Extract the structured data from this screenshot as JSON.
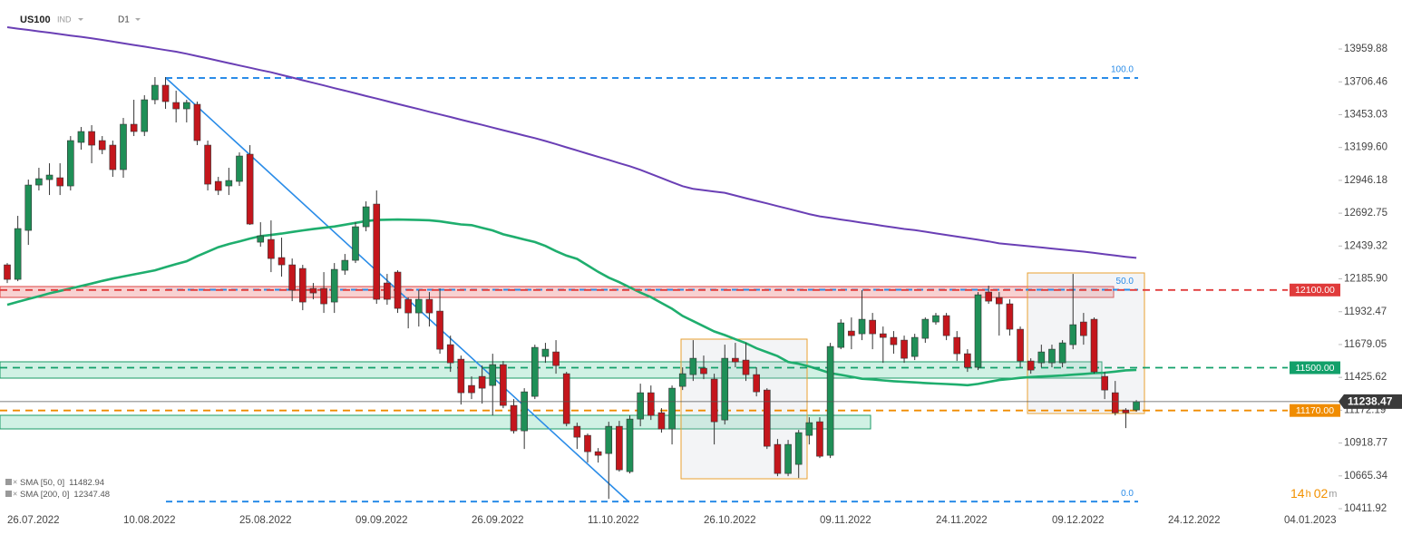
{
  "chart_data": {
    "type": "candlestick",
    "symbol": "US100",
    "instrument_type": "IND",
    "timeframe": "D1",
    "categories": [
      "26.07.2022",
      null,
      null,
      null,
      null,
      null,
      null,
      null,
      null,
      null,
      null,
      "10.08.2022",
      null,
      null,
      null,
      null,
      null,
      null,
      null,
      null,
      null,
      null,
      "25.08.2022",
      null,
      null,
      null,
      null,
      null,
      null,
      null,
      null,
      null,
      null,
      "09.09.2022",
      null,
      null,
      null,
      null,
      null,
      null,
      null,
      null,
      null,
      null,
      "26.09.2022",
      null,
      null,
      null,
      null,
      null,
      null,
      null,
      null,
      null,
      null,
      "11.10.2022",
      null,
      null,
      null,
      null,
      null,
      null,
      null,
      null,
      null,
      null,
      "26.10.2022",
      null,
      null,
      null,
      null,
      null,
      null,
      null,
      null,
      null,
      null,
      "09.11.2022",
      null,
      null,
      null,
      null,
      null,
      null,
      null,
      null,
      null,
      null,
      "24.11.2022",
      null,
      null,
      null,
      null,
      null,
      null,
      null,
      null,
      null,
      null,
      "09.12.2022",
      null,
      null,
      null,
      null,
      null,
      null,
      null,
      null,
      null,
      null,
      "24.12.2022",
      null,
      null,
      null,
      null,
      null,
      null,
      null,
      null,
      null,
      null,
      "04.01.2023",
      null,
      null,
      null,
      null,
      null
    ],
    "open": [
      12294,
      12182,
      12560,
      12910,
      12952,
      12966,
      12903,
      13239,
      13323,
      13253,
      13218,
      13029,
      13379,
      13323,
      13568,
      13680,
      13547,
      13498,
      13533,
      13218,
      12938,
      12903,
      12938,
      13148,
      12469,
      12490,
      12350,
      12294,
      12266,
      12112,
      12112,
      12007,
      12252,
      12329,
      12588,
      12763,
      12154,
      12238,
      12028,
      11923,
      12028,
      11937,
      11678,
      11566,
      11363,
      11433,
      11363,
      11524,
      11209,
      11013,
      11279,
      11587,
      11622,
      11454,
      11048,
      10978,
      10852,
      10838,
      11048,
      10698,
      11104,
      11307,
      11153,
      11027,
      11356,
      11447,
      11496,
      11412,
      11097,
      11573,
      11559,
      11447,
      11328,
      10908,
      10684,
      10754,
      10978,
      11083,
      10824,
      11657,
      11783,
      11762,
      11867,
      11762,
      11734,
      11713,
      11587,
      11727,
      11853,
      11902,
      11734,
      11608,
      11503,
      12084,
      12042,
      11993,
      11797,
      11552,
      11538,
      11538,
      11538,
      11678,
      11853,
      11874,
      11433,
      11307,
      11174,
      11174,
      null,
      null,
      null,
      null,
      null,
      null,
      null,
      null,
      null,
      null,
      null,
      null,
      null,
      null,
      null,
      null,
      null,
      null,
      null
    ],
    "high": [
      12308,
      12672,
      12952,
      13043,
      13078,
      13078,
      13288,
      13358,
      13372,
      13288,
      13253,
      13428,
      13568,
      13603,
      13743,
      13743,
      13638,
      13568,
      13554,
      13253,
      12973,
      13043,
      13162,
      13218,
      12623,
      12637,
      12504,
      12343,
      12294,
      12154,
      12238,
      12308,
      12378,
      12623,
      12784,
      12868,
      12224,
      12252,
      12042,
      12098,
      12084,
      12112,
      11748,
      11594,
      11433,
      11517,
      11608,
      11552,
      11258,
      11342,
      11678,
      11692,
      11713,
      11468,
      11076,
      10992,
      10880,
      11083,
      11090,
      11132,
      11377,
      11363,
      11188,
      11363,
      11503,
      11713,
      11594,
      11454,
      11678,
      11692,
      11692,
      11503,
      11342,
      10950,
      10943,
      11020,
      11118,
      11118,
      11692,
      11874,
      11888,
      12098,
      11923,
      11818,
      11783,
      11748,
      11762,
      11888,
      11923,
      11923,
      11783,
      11643,
      12084,
      12133,
      12084,
      12028,
      11818,
      11573,
      11678,
      11678,
      11713,
      12224,
      11923,
      11888,
      11468,
      11398,
      11188,
      11250,
      null,
      null,
      null,
      null,
      null,
      null,
      null,
      null,
      null,
      null,
      null,
      null,
      null,
      null,
      null,
      null,
      null,
      null,
      null
    ],
    "low": [
      12154,
      12168,
      12448,
      12868,
      12833,
      12833,
      12868,
      13183,
      13078,
      13148,
      12973,
      12966,
      13288,
      13288,
      13533,
      13498,
      13393,
      13393,
      13218,
      12868,
      12833,
      12833,
      12903,
      12602,
      12434,
      12238,
      12203,
      12014,
      11944,
      12028,
      11923,
      11923,
      12217,
      12308,
      12553,
      11993,
      11986,
      11923,
      11804,
      11818,
      11818,
      11608,
      11468,
      11216,
      11258,
      11223,
      11132,
      11188,
      10992,
      10873,
      11258,
      11538,
      11454,
      11048,
      10873,
      10768,
      10768,
      10488,
      10698,
      10684,
      11048,
      11097,
      10999,
      10908,
      11328,
      11398,
      11412,
      10908,
      11062,
      11503,
      11398,
      11279,
      10873,
      10663,
      10663,
      10649,
      10908,
      10803,
      10803,
      11643,
      11643,
      11713,
      11643,
      11538,
      11608,
      11538,
      11559,
      11692,
      11832,
      11713,
      11552,
      11468,
      11482,
      11993,
      11748,
      11748,
      11503,
      11454,
      11503,
      11503,
      11503,
      11643,
      11678,
      11454,
      11258,
      11132,
      11034,
      11160,
      null,
      null,
      null,
      null,
      null,
      null,
      null,
      null,
      null,
      null,
      null,
      null,
      null,
      null,
      null,
      null,
      null,
      null,
      null
    ],
    "close": [
      12182,
      12574,
      12910,
      12959,
      12987,
      12903,
      13253,
      13323,
      13218,
      13183,
      13029,
      13379,
      13323,
      13568,
      13680,
      13554,
      13498,
      13547,
      13253,
      12917,
      12868,
      12945,
      13134,
      12609,
      12518,
      12343,
      12294,
      12098,
      12007,
      12077,
      11993,
      12259,
      12329,
      12588,
      12742,
      12028,
      12028,
      11958,
      11923,
      12028,
      11923,
      11643,
      11538,
      11307,
      11307,
      11342,
      11524,
      11209,
      11013,
      11314,
      11657,
      11643,
      11517,
      11069,
      10964,
      10852,
      10824,
      11048,
      10712,
      11104,
      11307,
      11132,
      11027,
      11342,
      11454,
      11573,
      11454,
      11083,
      11573,
      11545,
      11447,
      11314,
      10894,
      10684,
      10908,
      10999,
      11076,
      10817,
      11664,
      11846,
      11748,
      11874,
      11762,
      11734,
      11678,
      11573,
      11734,
      11874,
      11902,
      11748,
      11608,
      11503,
      12063,
      12014,
      11993,
      11797,
      11552,
      11482,
      11622,
      11643,
      11692,
      11832,
      11748,
      11468,
      11328,
      11153,
      11153,
      11238.47,
      null,
      null,
      null,
      null,
      null,
      null,
      null,
      null,
      null,
      null,
      null,
      null,
      null,
      null,
      null,
      null,
      null,
      null,
      null
    ],
    "up_color": "#1f8f57",
    "down_color": "#c4161c",
    "series": [
      {
        "name": "SMA [50, 0]",
        "color": "#1fae6e",
        "values": [
          11986,
          12008,
          12030,
          12052,
          12074,
          12093,
          12112,
          12131,
          12150,
          12170,
          12188,
          12204,
          12220,
          12236,
          12252,
          12276,
          12300,
          12322,
          12360,
          12395,
          12430,
          12455,
          12475,
          12497,
          12516,
          12525,
          12535,
          12548,
          12560,
          12570,
          12580,
          12590,
          12604,
          12618,
          12632,
          12640,
          12642,
          12644,
          12642,
          12640,
          12638,
          12630,
          12618,
          12606,
          12600,
          12580,
          12560,
          12530,
          12510,
          12490,
          12470,
          12440,
          12400,
          12365,
          12340,
          12290,
          12240,
          12195,
          12160,
          12120,
          12080,
          12045,
          12000,
          11955,
          11900,
          11860,
          11820,
          11780,
          11752,
          11720,
          11690,
          11650,
          11620,
          11590,
          11545,
          11530,
          11510,
          11485,
          11458,
          11445,
          11430,
          11415,
          11410,
          11402,
          11396,
          11391,
          11387,
          11382,
          11378,
          11374,
          11370,
          11365,
          11375,
          11390,
          11405,
          11413,
          11422,
          11428,
          11432,
          11436,
          11440,
          11446,
          11452,
          11458,
          11462,
          11470,
          11480,
          11482.94,
          null,
          null,
          null,
          null,
          null,
          null,
          null,
          null,
          null,
          null,
          null,
          null,
          null,
          null,
          null,
          null,
          null,
          null,
          null
        ]
      },
      {
        "name": "SMA [200, 0]",
        "color": "#6a3fb5",
        "values": [
          14128,
          14117,
          14107,
          14096,
          14086,
          14075,
          14064,
          14054,
          14043,
          14030,
          14017,
          14004,
          13991,
          13978,
          13965,
          13952,
          13939,
          13923,
          13905,
          13887,
          13869,
          13851,
          13833,
          13815,
          13797,
          13780,
          13760,
          13740,
          13719,
          13699,
          13679,
          13658,
          13638,
          13618,
          13597,
          13577,
          13557,
          13536,
          13516,
          13496,
          13475,
          13455,
          13435,
          13414,
          13394,
          13374,
          13353,
          13333,
          13313,
          13292,
          13272,
          13250,
          13226,
          13201,
          13177,
          13152,
          13128,
          13104,
          13079,
          13055,
          13027,
          12996,
          12964,
          12932,
          12901,
          12880,
          12870,
          12860,
          12850,
          12829,
          12808,
          12788,
          12768,
          12747,
          12727,
          12707,
          12686,
          12668,
          12656,
          12644,
          12632,
          12619,
          12607,
          12595,
          12583,
          12571,
          12562,
          12550,
          12537,
          12525,
          12512,
          12500,
          12488,
          12475,
          12460,
          12452,
          12444,
          12436,
          12428,
          12420,
          12412,
          12404,
          12396,
          12386,
          12376,
          12366,
          12356,
          12347.48,
          null,
          null,
          null,
          null,
          null,
          null,
          null,
          null,
          null,
          null,
          null,
          null,
          null,
          null,
          null,
          null,
          null,
          null,
          null
        ]
      }
    ],
    "ylim": [
      10384,
      14338
    ],
    "yticks": [
      13959.88,
      13706.46,
      13453.03,
      {
        "value": 13199.6,
        "label": "13199.60"
      },
      12946.18,
      12692.75,
      12439.32,
      {
        "value": 12185.9,
        "label": "12185.90"
      },
      11932.47,
      11679.05,
      11425.62,
      11172.19,
      10918.77,
      10665.34,
      10411.92
    ],
    "levels": [
      {
        "value": 12100,
        "label": "12100.00",
        "color": "#e03b3b"
      },
      {
        "value": 11500,
        "label": "11500.00",
        "color": "#12a06a"
      },
      {
        "value": 11170,
        "label": "11170.00",
        "color": "#f08c00"
      }
    ],
    "fib_levels": [
      {
        "label": "100.0",
        "price": 13736
      },
      {
        "label": "50.0",
        "price": 12102
      },
      {
        "label": "0.0",
        "price": 10467
      }
    ],
    "countdown": [
      "14",
      "h",
      "02",
      "m"
    ]
  }
}
